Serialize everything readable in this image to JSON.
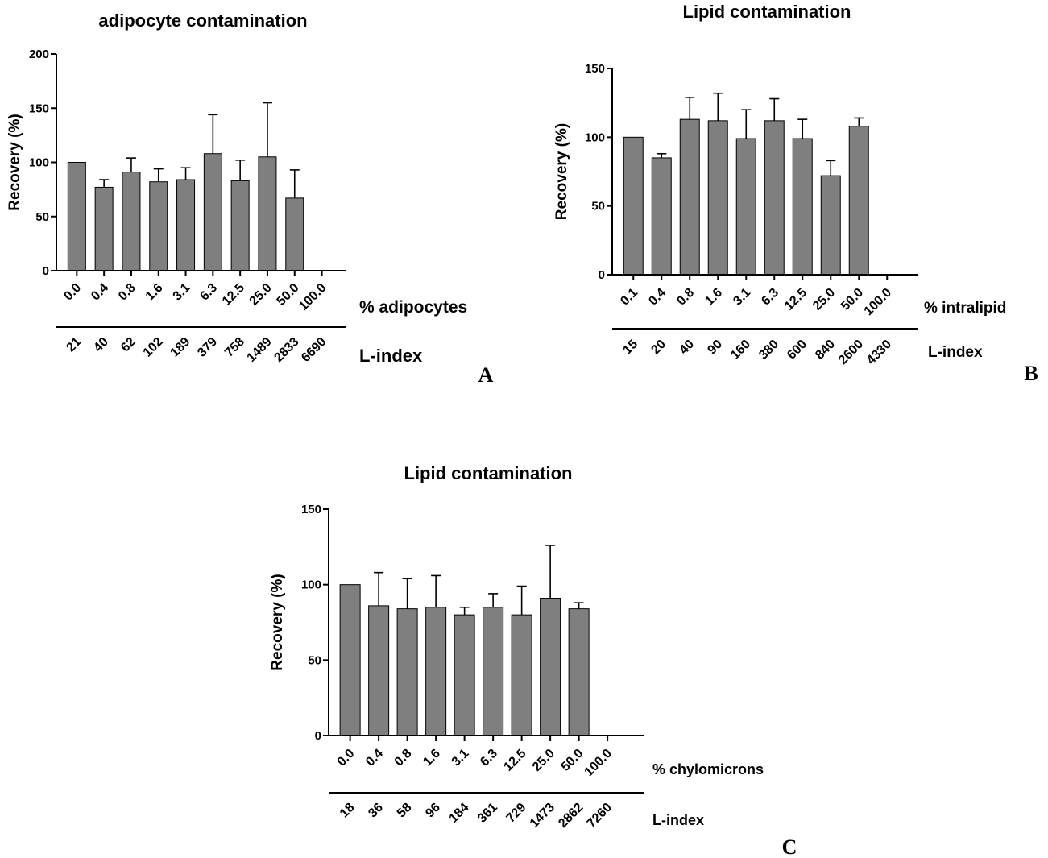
{
  "chart_data": [
    {
      "type": "bar",
      "panel": "A",
      "title": "adipocyte contamination",
      "ylabel": "Recovery (%)",
      "ylim": [
        0,
        200
      ],
      "yticks": [
        0,
        50,
        100,
        150,
        200
      ],
      "categories": [
        "0.0",
        "0.4",
        "0.8",
        "1.6",
        "3.1",
        "6.3",
        "12.5",
        "25.0",
        "50.0",
        "100.0"
      ],
      "values": [
        100,
        77,
        91,
        82,
        84,
        108,
        83,
        105,
        67,
        null
      ],
      "errors": [
        0,
        7,
        13,
        12,
        11,
        36,
        19,
        50,
        26,
        null
      ],
      "category_axis_label": "% adipocytes",
      "secondary_categories": [
        "21",
        "40",
        "62",
        "102",
        "189",
        "379",
        "758",
        "1489",
        "2833",
        "6690"
      ],
      "secondary_axis_label": "L-index"
    },
    {
      "type": "bar",
      "panel": "B",
      "title": "Lipid contamination",
      "ylabel": "Recovery (%)",
      "ylim": [
        0,
        150
      ],
      "yticks": [
        0,
        50,
        100,
        150
      ],
      "categories": [
        "0.1",
        "0.4",
        "0.8",
        "1.6",
        "3.1",
        "6.3",
        "12.5",
        "25.0",
        "50.0",
        "100.0"
      ],
      "values": [
        100,
        85,
        113,
        112,
        99,
        112,
        99,
        72,
        108,
        null
      ],
      "errors": [
        0,
        3,
        16,
        20,
        21,
        16,
        14,
        11,
        6,
        null
      ],
      "category_axis_label": "% intralipid",
      "secondary_categories": [
        "15",
        "20",
        "40",
        "90",
        "160",
        "380",
        "600",
        "840",
        "2600",
        "4330"
      ],
      "secondary_axis_label": "L-index"
    },
    {
      "type": "bar",
      "panel": "C",
      "title": "Lipid contamination",
      "ylabel": "Recovery (%)",
      "ylim": [
        0,
        150
      ],
      "yticks": [
        0,
        50,
        100,
        150
      ],
      "categories": [
        "0.0",
        "0.4",
        "0.8",
        "1.6",
        "3.1",
        "6.3",
        "12.5",
        "25.0",
        "50.0",
        "100.0"
      ],
      "values": [
        100,
        86,
        84,
        85,
        80,
        85,
        80,
        91,
        84,
        null
      ],
      "errors": [
        0,
        22,
        20,
        21,
        5,
        9,
        19,
        35,
        4,
        null
      ],
      "category_axis_label": "% chylomicrons",
      "secondary_categories": [
        "18",
        "36",
        "58",
        "96",
        "184",
        "361",
        "729",
        "1473",
        "2862",
        "7260"
      ],
      "secondary_axis_label": "L-index"
    }
  ]
}
